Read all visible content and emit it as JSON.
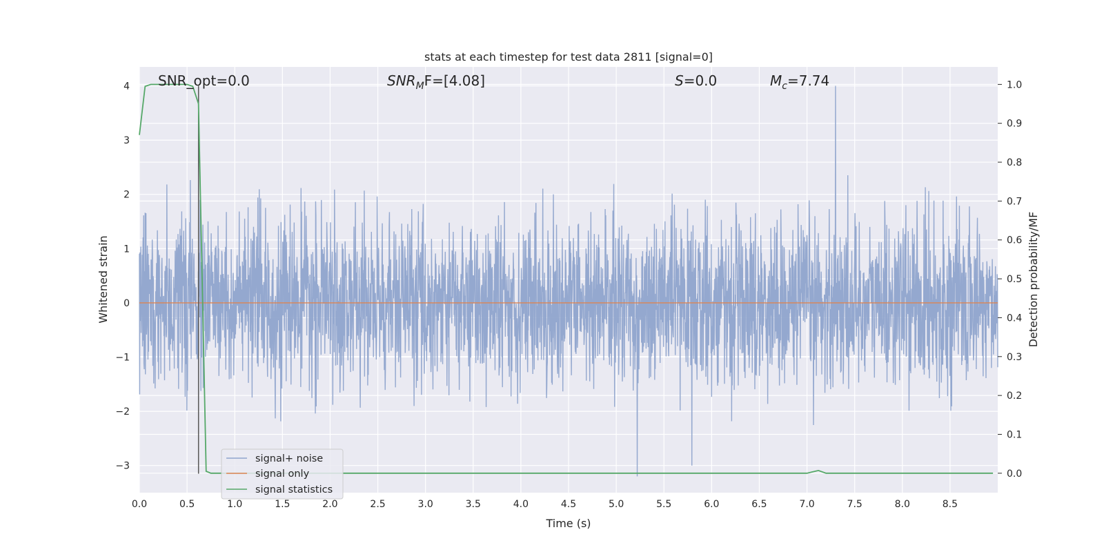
{
  "chart_data": {
    "type": "line",
    "title": "stats at each timestep for test data 2811 [signal=0]",
    "xlabel": "Time (s)",
    "ylabel_left": "Whitened strain",
    "ylabel_right": "Detection probability/MF",
    "xlim": [
      0,
      9.0
    ],
    "ylim_left": [
      -3.5,
      4.35
    ],
    "ylim_right": [
      -0.05,
      1.045
    ],
    "x_ticks": [
      "0.0",
      "0.5",
      "1.0",
      "1.5",
      "2.0",
      "2.5",
      "3.0",
      "3.5",
      "4.0",
      "4.5",
      "5.0",
      "5.5",
      "6.0",
      "6.5",
      "7.0",
      "7.5",
      "8.0",
      "8.5"
    ],
    "x_tick_values": [
      0,
      0.5,
      1.0,
      1.5,
      2.0,
      2.5,
      3.0,
      3.5,
      4.0,
      4.5,
      5.0,
      5.5,
      6.0,
      6.5,
      7.0,
      7.5,
      8.0,
      8.5
    ],
    "y_left_ticks": [
      "4",
      "3",
      "2",
      "1",
      "0",
      "−1",
      "−2",
      "−3"
    ],
    "y_left_tick_values": [
      4,
      3,
      2,
      1,
      0,
      -1,
      -2,
      -3
    ],
    "y_right_ticks": [
      "1.0",
      "0.9",
      "0.8",
      "0.7",
      "0.6",
      "0.5",
      "0.4",
      "0.3",
      "0.2",
      "0.1",
      "0.0"
    ],
    "y_right_tick_values": [
      1.0,
      0.9,
      0.8,
      0.7,
      0.6,
      0.5,
      0.4,
      0.3,
      0.2,
      0.1,
      0.0
    ],
    "grid": true,
    "legend_location": "lower-left",
    "annotations": {
      "snr_opt": "SNR_opt=0.0",
      "snr_mf_sym": "SNR",
      "snr_mf_sub": "M",
      "snr_mf_rest": "F=[4.08]",
      "s_sym": "S",
      "s_rest": "=0.0",
      "mc_sym": "M",
      "mc_sub": "c",
      "mc_rest": "=7.74"
    },
    "marker_line_x": 0.62,
    "series": [
      {
        "name": "signal+ noise",
        "color": "#8fa4cc",
        "axis": "left",
        "description_values": {
          "approx_std": 0.75,
          "max": 4.0,
          "max_at": 7.3,
          "min": -3.2,
          "min_at": 5.22
        }
      },
      {
        "name": "signal only",
        "color": "#dd8452",
        "axis": "left",
        "x": [
          0,
          9.0
        ],
        "y": [
          0,
          0
        ]
      },
      {
        "name": "signal statistics",
        "color": "#55a868",
        "axis": "right",
        "x": [
          0,
          0.06,
          0.12,
          0.2,
          0.3,
          0.4,
          0.5,
          0.56,
          0.62,
          0.7,
          0.75,
          0.8,
          1.0,
          2.0,
          3.0,
          4.0,
          5.0,
          6.0,
          7.0,
          7.05,
          7.12,
          7.2,
          7.5,
          8.0,
          8.5,
          8.95
        ],
        "y": [
          0.87,
          0.995,
          1.0,
          1.0,
          1.0,
          1.0,
          1.0,
          0.995,
          0.95,
          0.005,
          0.0,
          0.0,
          0.0,
          0.0,
          0.0,
          0.0,
          0.0,
          0.0,
          0.0,
          0.003,
          0.007,
          0.0,
          0.0,
          0.0,
          0.0,
          0.0
        ]
      }
    ]
  },
  "colors": {
    "axes_bg": "#eaeaf2",
    "grid": "#ffffff",
    "marker_line": "#555555"
  }
}
